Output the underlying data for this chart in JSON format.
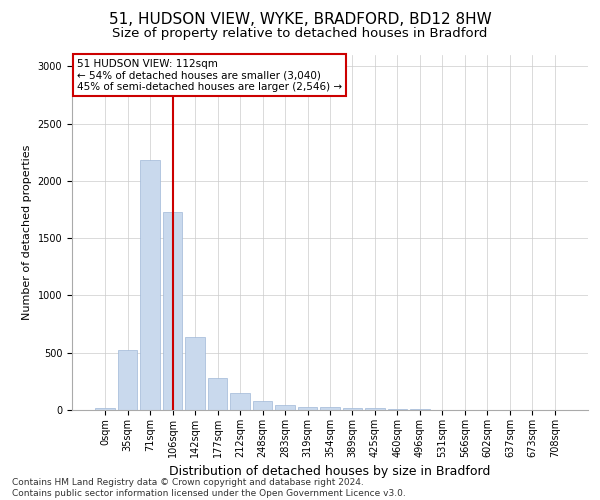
{
  "title": "51, HUDSON VIEW, WYKE, BRADFORD, BD12 8HW",
  "subtitle": "Size of property relative to detached houses in Bradford",
  "xlabel": "Distribution of detached houses by size in Bradford",
  "ylabel": "Number of detached properties",
  "footer_line1": "Contains HM Land Registry data © Crown copyright and database right 2024.",
  "footer_line2": "Contains public sector information licensed under the Open Government Licence v3.0.",
  "bar_labels": [
    "0sqm",
    "35sqm",
    "71sqm",
    "106sqm",
    "142sqm",
    "177sqm",
    "212sqm",
    "248sqm",
    "283sqm",
    "319sqm",
    "354sqm",
    "389sqm",
    "425sqm",
    "460sqm",
    "496sqm",
    "531sqm",
    "566sqm",
    "602sqm",
    "637sqm",
    "673sqm",
    "708sqm"
  ],
  "bar_values": [
    20,
    520,
    2180,
    1730,
    640,
    280,
    150,
    80,
    45,
    30,
    25,
    20,
    15,
    5,
    5,
    2,
    2,
    1,
    1,
    0,
    0
  ],
  "bar_color": "#c9d9ed",
  "bar_edgecolor": "#a0b8d8",
  "vline_x": 3,
  "vline_color": "#cc0000",
  "annotation_text": "51 HUDSON VIEW: 112sqm\n← 54% of detached houses are smaller (3,040)\n45% of semi-detached houses are larger (2,546) →",
  "annotation_box_color": "#ffffff",
  "annotation_box_edgecolor": "#cc0000",
  "ylim": [
    0,
    3100
  ],
  "yticks": [
    0,
    500,
    1000,
    1500,
    2000,
    2500,
    3000
  ],
  "title_fontsize": 11,
  "subtitle_fontsize": 9.5,
  "xlabel_fontsize": 9,
  "ylabel_fontsize": 8,
  "tick_fontsize": 7,
  "annotation_fontsize": 7.5,
  "footer_fontsize": 6.5,
  "background_color": "#ffffff",
  "grid_color": "#cccccc"
}
